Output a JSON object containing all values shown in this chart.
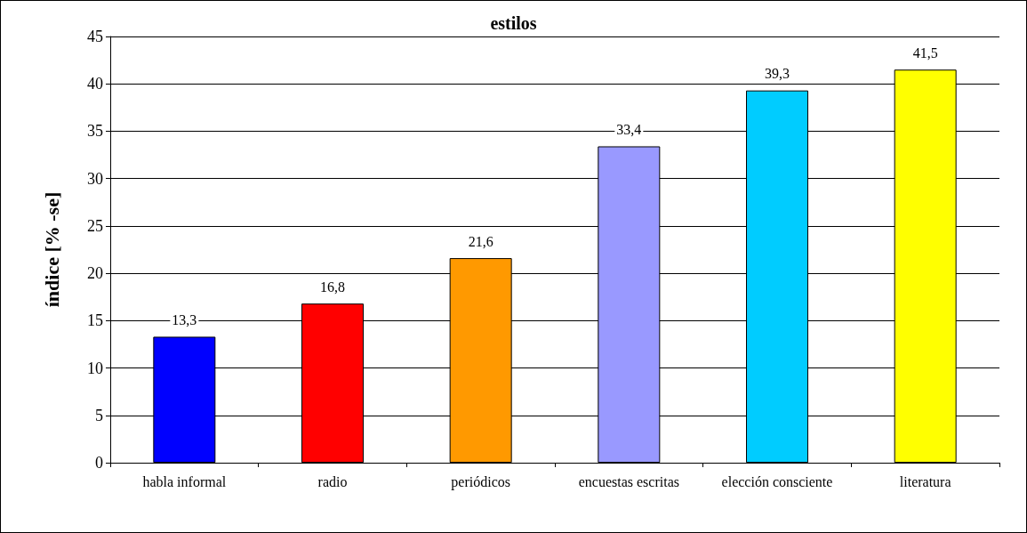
{
  "chart_data": {
    "type": "bar",
    "title": "estilos",
    "ylabel": "índice [% -se]",
    "categories": [
      "habla informal",
      "radio",
      "periódicos",
      "encuestas escritas",
      "elección consciente",
      "literatura"
    ],
    "values": [
      13.3,
      16.8,
      21.6,
      33.4,
      39.3,
      41.5
    ],
    "colors": [
      "#0000ff",
      "#ff0000",
      "#ff9900",
      "#9999ff",
      "#00ccff",
      "#ffff00"
    ],
    "value_labels": [
      "13,3",
      "16,8",
      "21,6",
      "33,4",
      "39,3",
      "41,5"
    ],
    "ylim": [
      0,
      45
    ],
    "yticks": [
      0,
      5,
      10,
      15,
      20,
      25,
      30,
      35,
      40,
      45
    ],
    "grid": "y"
  }
}
